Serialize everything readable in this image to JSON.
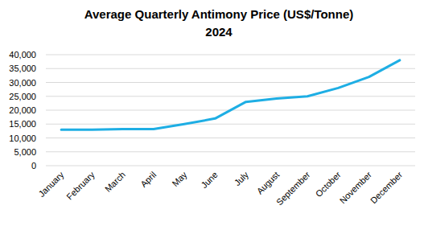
{
  "chart_data": {
    "type": "line",
    "title": "Average Quarterly Antimony Price (US$/Tonne)",
    "subtitle": "2024",
    "categories": [
      "January",
      "February",
      "March",
      "April",
      "May",
      "June",
      "July",
      "August",
      "September",
      "October",
      "November",
      "December"
    ],
    "values": [
      13000,
      13000,
      13200,
      13200,
      15000,
      17000,
      23000,
      24200,
      25000,
      28000,
      32000,
      38000
    ],
    "color": "#1eaee4",
    "ylim": [
      0,
      40000
    ],
    "yticks": [
      0,
      {
        "value": 5000,
        "label": "5,000"
      },
      {
        "value": 10000,
        "label": "10,000"
      },
      {
        "value": 15000,
        "label": "15,000"
      },
      {
        "value": 20000,
        "label": "20,000"
      },
      {
        "value": 25000,
        "label": "25,000"
      },
      {
        "value": 30000,
        "label": "30,000"
      },
      {
        "value": 35000,
        "label": "35,000"
      },
      {
        "value": 40000,
        "label": "40,000"
      }
    ],
    "grid": true
  }
}
